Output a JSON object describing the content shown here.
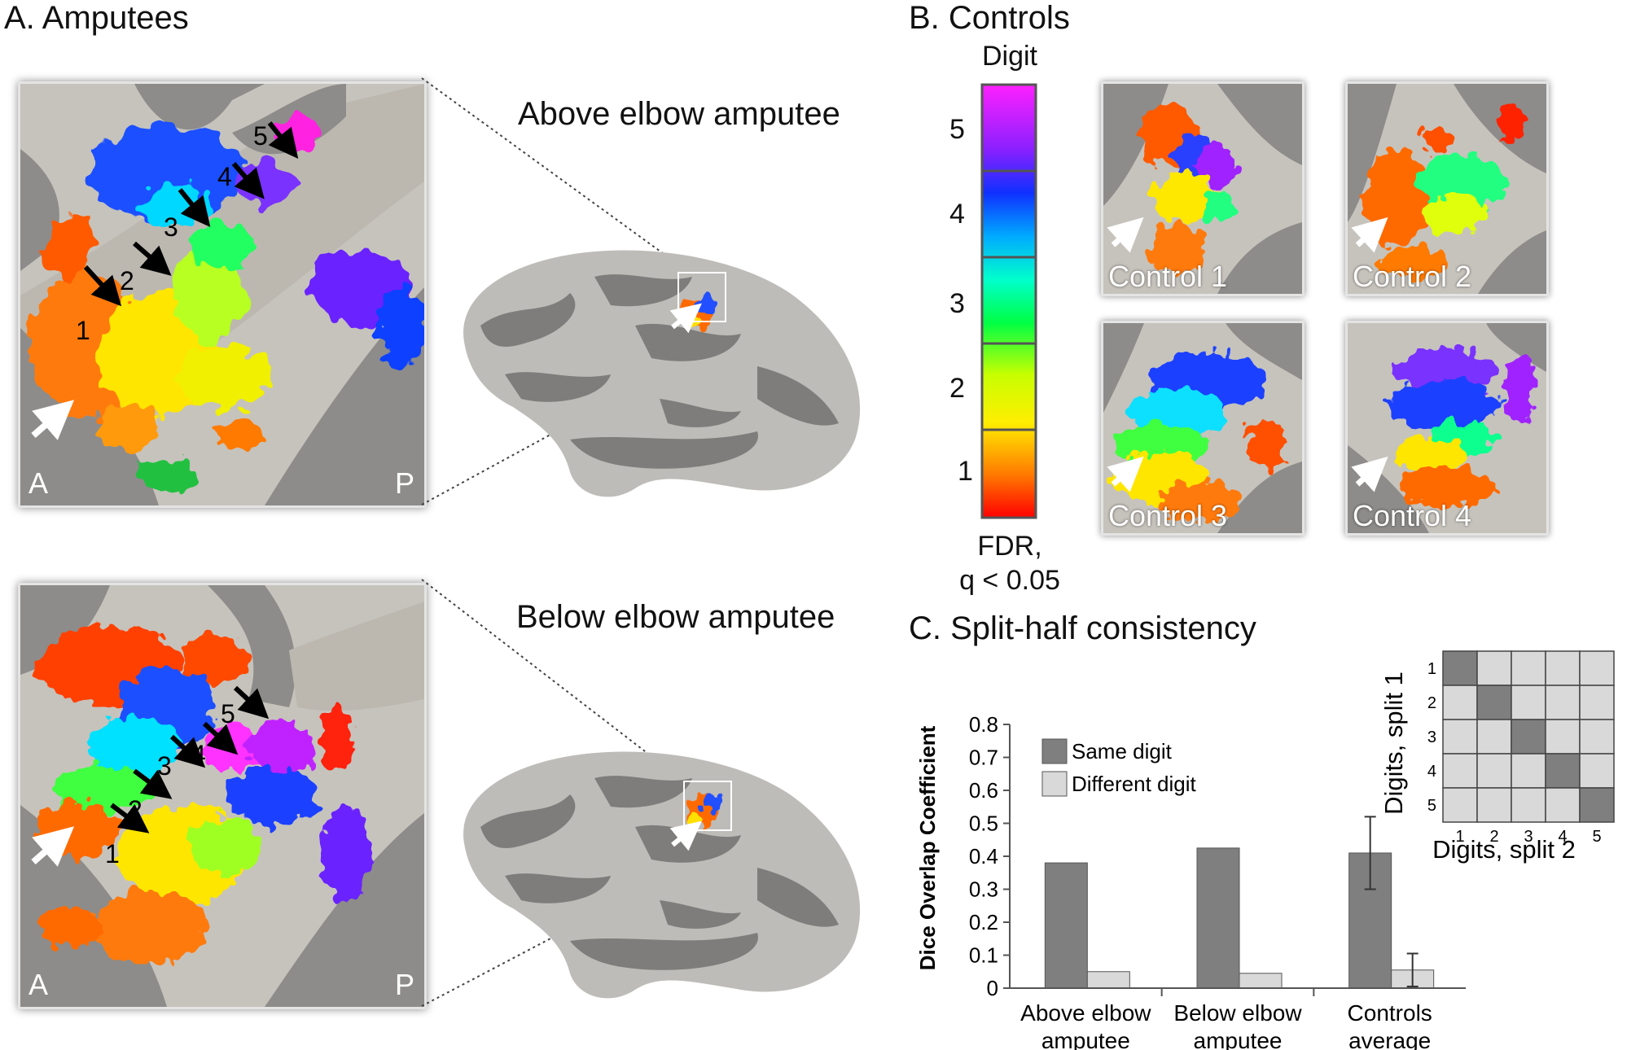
{
  "panel_a": {
    "title": "A. Amputees",
    "above": {
      "subtitle": "Above elbow amputee",
      "corner_left": "A",
      "corner_right": "P",
      "digit_labels": [
        "1",
        "2",
        "3",
        "4",
        "5"
      ]
    },
    "below": {
      "subtitle": "Below elbow amputee",
      "corner_left": "A",
      "corner_right": "P",
      "digit_labels": [
        "1",
        "2",
        "3",
        "4",
        "5"
      ]
    }
  },
  "panel_b": {
    "title": "B. Controls",
    "colorbar": {
      "top_label": "Digit",
      "ticks": [
        "5",
        "4",
        "3",
        "2",
        "1"
      ],
      "bottom_label_1": "FDR,",
      "bottom_label_2": "q < 0.05"
    },
    "controls": [
      "Control 1",
      "Control 2",
      "Control 3",
      "Control 4"
    ]
  },
  "panel_c": {
    "title": "C. Split-half consistency",
    "matrix": {
      "row_labels": [
        "1",
        "2",
        "3",
        "4",
        "5"
      ],
      "col_labels": [
        "1",
        "2",
        "3",
        "4",
        "5"
      ],
      "ylabel": "Digits, split 1",
      "xlabel": "Digits, split 2",
      "same_color": "#7f7f7f",
      "diff_color": "#d9d9d9"
    }
  },
  "chart_data": {
    "type": "bar",
    "title": "",
    "xlabel": "",
    "ylabel": "Dice Overlap Coefficient",
    "categories": [
      "Above elbow\namputee",
      "Below elbow\namputee",
      "Controls\naverage"
    ],
    "ylim": [
      0,
      0.8
    ],
    "yticks": [
      "0",
      "0.1",
      "0.2",
      "0.3",
      "0.4",
      "0.5",
      "0.6",
      "0.7",
      "0.8"
    ],
    "series": [
      {
        "name": "Same digit",
        "color": "#7f7f7f",
        "values": [
          0.38,
          0.425,
          0.41
        ],
        "error": [
          null,
          null,
          0.11
        ]
      },
      {
        "name": "Different digit",
        "color": "#d9d9d9",
        "values": [
          0.05,
          0.045,
          0.055
        ],
        "error": [
          null,
          null,
          0.05
        ]
      }
    ],
    "legend": "top-left",
    "grid": false
  }
}
